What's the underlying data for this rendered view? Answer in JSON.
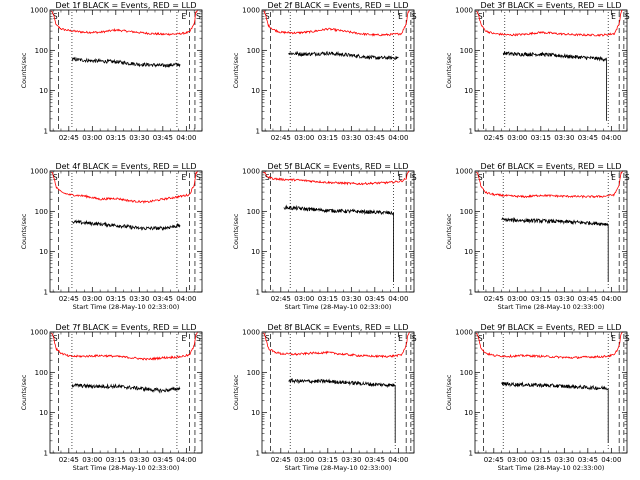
{
  "colors": {
    "events": "#000000",
    "lld": "#ff0000",
    "background": "#ffffff"
  },
  "chart_data": [
    {
      "type": "line",
      "title": "Det 1f BLACK = Events, RED = LLD",
      "ylabel": "Counts/sec",
      "xlabel": "",
      "yscale": "log",
      "ylim": [
        1,
        1000
      ],
      "xlim": [
        "02:33:00",
        "04:10:00"
      ],
      "y_tick_labels": [
        "1",
        "10",
        "100",
        "1000"
      ],
      "x_tick_labels": [
        "02:45",
        "03:00",
        "03:15",
        "03:30",
        "03:45",
        "04:00"
      ],
      "markers": [
        "S",
        "E",
        "S"
      ],
      "series": [
        {
          "name": "LLD",
          "color": "#ff0000",
          "start": "02:35:30",
          "end": "04:05:30",
          "end_drop": false,
          "t": [
            "02:34:00",
            "02:35:00",
            "02:37:00",
            "02:40:00",
            "02:45:00",
            "02:55:00",
            "03:05:00",
            "03:15:00",
            "03:25:00",
            "03:35:00",
            "03:45:00",
            "03:55:00",
            "04:02:00",
            "04:05:00",
            "04:06:00",
            "04:07:00"
          ],
          "v": [
            950,
            800,
            420,
            340,
            310,
            280,
            280,
            320,
            290,
            265,
            250,
            255,
            280,
            450,
            850,
            1000
          ]
        },
        {
          "name": "Events",
          "color": "#000000",
          "start": "02:47:00",
          "end": "03:56:00",
          "end_drop": false,
          "t": [
            "02:47:00",
            "03:00:00",
            "03:15:00",
            "03:30:00",
            "03:45:00",
            "03:56:00"
          ],
          "v": [
            60,
            55,
            52,
            45,
            42,
            45
          ]
        }
      ],
      "dashed_verticals": [
        "02:38:30",
        "04:02:00",
        "04:05:30"
      ],
      "dotted_verticals": [
        "02:47:00",
        "03:54:00"
      ]
    },
    {
      "type": "line",
      "title": "Det 2f BLACK = Events, RED = LLD",
      "ylabel": "Counts/sec",
      "xlabel": "",
      "yscale": "log",
      "ylim": [
        1,
        1000
      ],
      "xlim": [
        "02:33:00",
        "04:10:00"
      ],
      "y_tick_labels": [
        "1",
        "10",
        "100",
        "1000"
      ],
      "x_tick_labels": [
        "02:45",
        "03:00",
        "03:15",
        "03:30",
        "03:45",
        "04:00"
      ],
      "markers": [
        "S",
        "E",
        "S"
      ],
      "series": [
        {
          "name": "LLD",
          "color": "#ff0000",
          "start": "02:35:30",
          "end": "04:05:30",
          "end_drop": false,
          "t": [
            "02:34:00",
            "02:35:00",
            "02:37:00",
            "02:40:00",
            "02:45:00",
            "02:55:00",
            "03:05:00",
            "03:15:00",
            "03:25:00",
            "03:35:00",
            "03:45:00",
            "03:55:00",
            "04:02:00",
            "04:05:00",
            "04:06:00",
            "04:07:00"
          ],
          "v": [
            950,
            800,
            420,
            330,
            280,
            270,
            290,
            340,
            300,
            260,
            240,
            245,
            260,
            450,
            850,
            1000
          ]
        },
        {
          "name": "Events",
          "color": "#000000",
          "start": "02:50:00",
          "end": "04:00:00",
          "end_drop": false,
          "t": [
            "02:50:00",
            "03:00:00",
            "03:15:00",
            "03:30:00",
            "03:45:00",
            "04:00:00"
          ],
          "v": [
            85,
            80,
            85,
            75,
            65,
            65
          ]
        }
      ],
      "dashed_verticals": [
        "02:38:30",
        "04:05:00",
        "04:08:00"
      ],
      "dotted_verticals": [
        "02:51:00",
        "03:57:00"
      ]
    },
    {
      "type": "line",
      "title": "Det 3f BLACK = Events, RED = LLD",
      "ylabel": "Counts/sec",
      "xlabel": "",
      "yscale": "log",
      "ylim": [
        1,
        1000
      ],
      "xlim": [
        "02:33:00",
        "04:10:00"
      ],
      "y_tick_labels": [
        "1",
        "10",
        "100",
        "1000"
      ],
      "x_tick_labels": [
        "02:45",
        "03:00",
        "03:15",
        "03:30",
        "03:45",
        "04:00"
      ],
      "markers": [
        "S",
        "E",
        "S"
      ],
      "series": [
        {
          "name": "LLD",
          "color": "#ff0000",
          "start": "02:35:30",
          "end": "04:05:30",
          "end_drop": false,
          "t": [
            "02:34:00",
            "02:35:00",
            "02:37:00",
            "02:40:00",
            "02:45:00",
            "02:55:00",
            "03:05:00",
            "03:15:00",
            "03:25:00",
            "03:35:00",
            "03:45:00",
            "03:55:00",
            "04:02:00",
            "04:05:00",
            "04:06:00",
            "04:07:00"
          ],
          "v": [
            950,
            800,
            420,
            300,
            260,
            240,
            250,
            280,
            260,
            245,
            240,
            240,
            260,
            450,
            850,
            1000
          ]
        },
        {
          "name": "Events",
          "color": "#000000",
          "start": "02:51:00",
          "end": "03:57:00",
          "end_drop": true,
          "t": [
            "02:51:00",
            "03:00:00",
            "03:15:00",
            "03:30:00",
            "03:45:00",
            "03:57:00"
          ],
          "v": [
            85,
            80,
            80,
            72,
            65,
            60
          ]
        }
      ],
      "dashed_verticals": [
        "02:38:30",
        "04:05:00",
        "04:08:00"
      ],
      "dotted_verticals": [
        "02:52:00",
        "03:58:00"
      ]
    },
    {
      "type": "line",
      "title": "Det 4f BLACK = Events, RED = LLD",
      "ylabel": "Counts/sec",
      "xlabel": "Start Time (28-May-10 02:33:00)",
      "yscale": "log",
      "ylim": [
        1,
        1000
      ],
      "xlim": [
        "02:33:00",
        "04:10:00"
      ],
      "y_tick_labels": [
        "1",
        "10",
        "100",
        "1000"
      ],
      "x_tick_labels": [
        "02:45",
        "03:00",
        "03:15",
        "03:30",
        "03:45",
        "04:00"
      ],
      "markers": [
        "S",
        "E",
        "S"
      ],
      "series": [
        {
          "name": "LLD",
          "color": "#ff0000",
          "start": "02:35:30",
          "end": "04:05:30",
          "end_drop": false,
          "t": [
            "02:34:00",
            "02:35:00",
            "02:37:00",
            "02:40:00",
            "02:45:00",
            "02:55:00",
            "03:05:00",
            "03:15:00",
            "03:25:00",
            "03:35:00",
            "03:45:00",
            "03:55:00",
            "04:02:00",
            "04:05:00",
            "04:06:00",
            "04:07:00"
          ],
          "v": [
            950,
            800,
            400,
            300,
            260,
            240,
            200,
            210,
            180,
            170,
            200,
            230,
            260,
            450,
            850,
            1000
          ]
        },
        {
          "name": "Events",
          "color": "#000000",
          "start": "02:47:00",
          "end": "03:56:00",
          "end_drop": false,
          "t": [
            "02:47:00",
            "03:00:00",
            "03:15:00",
            "03:30:00",
            "03:45:00",
            "03:56:00"
          ],
          "v": [
            55,
            50,
            45,
            38,
            38,
            45
          ]
        }
      ],
      "dashed_verticals": [
        "02:38:30",
        "04:02:00",
        "04:05:30"
      ],
      "dotted_verticals": [
        "02:47:00",
        "03:54:00"
      ]
    },
    {
      "type": "line",
      "title": "Det 5f BLACK = Events, RED = LLD",
      "ylabel": "Counts/sec",
      "xlabel": "Start Time (28-May-10 02:33:00)",
      "yscale": "log",
      "ylim": [
        1,
        1000
      ],
      "xlim": [
        "02:33:00",
        "04:10:00"
      ],
      "y_tick_labels": [
        "1",
        "10",
        "100",
        "1000"
      ],
      "x_tick_labels": [
        "02:45",
        "03:00",
        "03:15",
        "03:30",
        "03:45",
        "04:00"
      ],
      "markers": [
        "S",
        "E",
        "S"
      ],
      "series": [
        {
          "name": "LLD",
          "color": "#ff0000",
          "start": "02:35:30",
          "end": "04:05:30",
          "end_drop": false,
          "t": [
            "02:34:00",
            "02:35:00",
            "02:37:00",
            "02:40:00",
            "02:45:00",
            "02:55:00",
            "03:05:00",
            "03:15:00",
            "03:25:00",
            "03:35:00",
            "03:45:00",
            "03:55:00",
            "04:02:00",
            "04:05:00",
            "04:06:00",
            "04:07:00"
          ],
          "v": [
            950,
            850,
            700,
            650,
            620,
            600,
            560,
            520,
            500,
            480,
            500,
            520,
            560,
            650,
            900,
            1000
          ]
        },
        {
          "name": "Events",
          "color": "#000000",
          "start": "02:47:00",
          "end": "03:57:00",
          "end_drop": true,
          "t": [
            "02:47:00",
            "03:00:00",
            "03:15:00",
            "03:30:00",
            "03:45:00",
            "03:57:00"
          ],
          "v": [
            125,
            115,
            105,
            100,
            95,
            90
          ]
        }
      ],
      "dashed_verticals": [
        "02:38:30",
        "04:05:00",
        "04:08:00"
      ],
      "dotted_verticals": [
        "02:51:00",
        "03:57:00"
      ]
    },
    {
      "type": "line",
      "title": "Det 6f BLACK = Events, RED = LLD",
      "ylabel": "Counts/sec",
      "xlabel": "Start Time (28-May-10 02:33:00)",
      "yscale": "log",
      "ylim": [
        1,
        1000
      ],
      "xlim": [
        "02:33:00",
        "04:10:00"
      ],
      "y_tick_labels": [
        "1",
        "10",
        "100",
        "1000"
      ],
      "x_tick_labels": [
        "02:45",
        "03:00",
        "03:15",
        "03:30",
        "03:45",
        "04:00"
      ],
      "markers": [
        "S",
        "E",
        "S"
      ],
      "series": [
        {
          "name": "LLD",
          "color": "#ff0000",
          "start": "02:35:30",
          "end": "04:05:30",
          "end_drop": false,
          "t": [
            "02:34:00",
            "02:35:00",
            "02:37:00",
            "02:40:00",
            "02:45:00",
            "02:55:00",
            "03:05:00",
            "03:15:00",
            "03:25:00",
            "03:35:00",
            "03:45:00",
            "03:55:00",
            "04:02:00",
            "04:05:00",
            "04:06:00",
            "04:07:00"
          ],
          "v": [
            950,
            800,
            400,
            290,
            260,
            240,
            230,
            250,
            240,
            235,
            230,
            235,
            260,
            450,
            850,
            1000
          ]
        },
        {
          "name": "Events",
          "color": "#000000",
          "start": "02:50:00",
          "end": "03:58:00",
          "end_drop": true,
          "t": [
            "02:50:00",
            "03:00:00",
            "03:15:00",
            "03:30:00",
            "03:45:00",
            "03:58:00"
          ],
          "v": [
            62,
            60,
            58,
            55,
            52,
            48
          ]
        }
      ],
      "dashed_verticals": [
        "02:38:30",
        "04:05:00",
        "04:08:00"
      ],
      "dotted_verticals": [
        "02:51:00",
        "03:58:00"
      ]
    },
    {
      "type": "line",
      "title": "Det 7f BLACK = Events, RED = LLD",
      "ylabel": "Counts/sec",
      "xlabel": "Start Time (28-May-10 02:33:00)",
      "yscale": "log",
      "ylim": [
        1,
        1000
      ],
      "xlim": [
        "02:33:00",
        "04:10:00"
      ],
      "y_tick_labels": [
        "1",
        "10",
        "100",
        "1000"
      ],
      "x_tick_labels": [
        "02:45",
        "03:00",
        "03:15",
        "03:30",
        "03:45",
        "04:00"
      ],
      "markers": [
        "S",
        "E",
        "S"
      ],
      "series": [
        {
          "name": "LLD",
          "color": "#ff0000",
          "start": "02:35:30",
          "end": "04:05:30",
          "end_drop": false,
          "t": [
            "02:34:00",
            "02:35:00",
            "02:37:00",
            "02:40:00",
            "02:45:00",
            "02:55:00",
            "03:05:00",
            "03:15:00",
            "03:25:00",
            "03:35:00",
            "03:45:00",
            "03:55:00",
            "04:02:00",
            "04:05:00",
            "04:06:00",
            "04:07:00"
          ],
          "v": [
            950,
            800,
            380,
            300,
            250,
            250,
            260,
            250,
            230,
            210,
            230,
            240,
            270,
            450,
            850,
            1000
          ]
        },
        {
          "name": "Events",
          "color": "#000000",
          "start": "02:47:00",
          "end": "03:56:00",
          "end_drop": false,
          "t": [
            "02:47:00",
            "03:00:00",
            "03:15:00",
            "03:30:00",
            "03:45:00",
            "03:56:00"
          ],
          "v": [
            48,
            45,
            45,
            40,
            35,
            40
          ]
        }
      ],
      "dashed_verticals": [
        "02:38:30",
        "04:02:00",
        "04:05:30"
      ],
      "dotted_verticals": [
        "02:47:00",
        "03:54:00"
      ]
    },
    {
      "type": "line",
      "title": "Det 8f BLACK = Events, RED = LLD",
      "ylabel": "Counts/sec",
      "xlabel": "Start Time (28-May-10 02:33:00)",
      "yscale": "log",
      "ylim": [
        1,
        1000
      ],
      "xlim": [
        "02:33:00",
        "04:10:00"
      ],
      "y_tick_labels": [
        "1",
        "10",
        "100",
        "1000"
      ],
      "x_tick_labels": [
        "02:45",
        "03:00",
        "03:15",
        "03:30",
        "03:45",
        "04:00"
      ],
      "markers": [
        "S",
        "E",
        "S"
      ],
      "series": [
        {
          "name": "LLD",
          "color": "#ff0000",
          "start": "02:35:30",
          "end": "04:05:30",
          "end_drop": false,
          "t": [
            "02:34:00",
            "02:35:00",
            "02:37:00",
            "02:40:00",
            "02:45:00",
            "02:55:00",
            "03:05:00",
            "03:15:00",
            "03:25:00",
            "03:35:00",
            "03:45:00",
            "03:55:00",
            "04:02:00",
            "04:05:00",
            "04:06:00",
            "04:07:00"
          ],
          "v": [
            950,
            800,
            400,
            330,
            290,
            280,
            300,
            310,
            280,
            260,
            250,
            250,
            270,
            450,
            850,
            1000
          ]
        },
        {
          "name": "Events",
          "color": "#000000",
          "start": "02:50:00",
          "end": "03:58:00",
          "end_drop": true,
          "t": [
            "02:50:00",
            "03:00:00",
            "03:15:00",
            "03:30:00",
            "03:45:00",
            "03:58:00"
          ],
          "v": [
            62,
            60,
            60,
            55,
            50,
            48
          ]
        }
      ],
      "dashed_verticals": [
        "02:38:30",
        "04:05:00",
        "04:08:00"
      ],
      "dotted_verticals": [
        "02:51:00",
        "03:58:00"
      ]
    },
    {
      "type": "line",
      "title": "Det 9f BLACK = Events, RED = LLD",
      "ylabel": "Counts/sec",
      "xlabel": "Start Time (28-May-10 02:33:00)",
      "yscale": "log",
      "ylim": [
        1,
        1000
      ],
      "xlim": [
        "02:33:00",
        "04:10:00"
      ],
      "y_tick_labels": [
        "1",
        "10",
        "100",
        "1000"
      ],
      "x_tick_labels": [
        "02:45",
        "03:00",
        "03:15",
        "03:30",
        "03:45",
        "04:00"
      ],
      "markers": [
        "S",
        "E",
        "S"
      ],
      "series": [
        {
          "name": "LLD",
          "color": "#ff0000",
          "start": "02:35:30",
          "end": "04:05:30",
          "end_drop": false,
          "t": [
            "02:34:00",
            "02:35:00",
            "02:37:00",
            "02:40:00",
            "02:45:00",
            "02:55:00",
            "03:05:00",
            "03:15:00",
            "03:25:00",
            "03:35:00",
            "03:45:00",
            "03:55:00",
            "04:02:00",
            "04:05:00",
            "04:06:00",
            "04:07:00"
          ],
          "v": [
            950,
            800,
            380,
            300,
            260,
            250,
            260,
            250,
            240,
            230,
            240,
            245,
            270,
            450,
            850,
            1000
          ]
        },
        {
          "name": "Events",
          "color": "#000000",
          "start": "02:50:00",
          "end": "03:58:00",
          "end_drop": true,
          "t": [
            "02:50:00",
            "03:00:00",
            "03:15:00",
            "03:30:00",
            "03:45:00",
            "03:58:00"
          ],
          "v": [
            52,
            50,
            48,
            45,
            42,
            40
          ]
        }
      ],
      "dashed_verticals": [
        "02:38:30",
        "04:05:00",
        "04:08:00"
      ],
      "dotted_verticals": [
        "02:51:00",
        "03:58:00"
      ]
    }
  ]
}
